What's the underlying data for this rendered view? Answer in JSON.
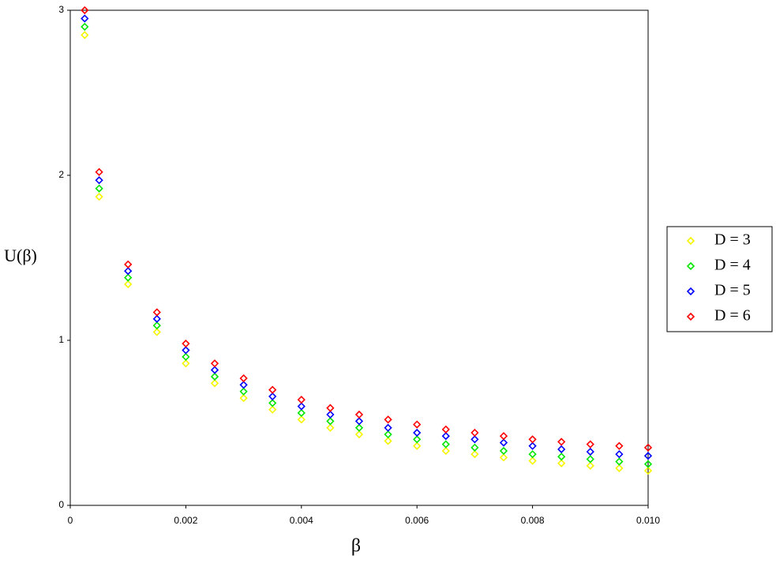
{
  "chart_data": {
    "type": "scatter",
    "x_label": "β",
    "y_label": "U(β)",
    "x": [
      0.00025,
      0.0005,
      0.001,
      0.0015,
      0.002,
      0.0025,
      0.003,
      0.0035,
      0.004,
      0.0045,
      0.005,
      0.0055,
      0.006,
      0.0065,
      0.007,
      0.0075,
      0.008,
      0.0085,
      0.009,
      0.0095,
      0.01
    ],
    "series": [
      {
        "name": "D = 3",
        "color": "#f5f500",
        "values": [
          2.85,
          1.87,
          1.34,
          1.05,
          0.86,
          0.74,
          0.65,
          0.58,
          0.52,
          0.47,
          0.43,
          0.39,
          0.36,
          0.33,
          0.31,
          0.29,
          0.27,
          0.255,
          0.24,
          0.225,
          0.21
        ]
      },
      {
        "name": "D = 4",
        "color": "#00e600",
        "values": [
          2.9,
          1.92,
          1.38,
          1.09,
          0.9,
          0.78,
          0.69,
          0.62,
          0.56,
          0.51,
          0.47,
          0.43,
          0.4,
          0.37,
          0.35,
          0.33,
          0.31,
          0.295,
          0.28,
          0.265,
          0.25
        ]
      },
      {
        "name": "D = 5",
        "color": "#0000ff",
        "values": [
          2.95,
          1.97,
          1.42,
          1.13,
          0.94,
          0.82,
          0.73,
          0.66,
          0.6,
          0.55,
          0.51,
          0.47,
          0.44,
          0.42,
          0.4,
          0.38,
          0.36,
          0.34,
          0.325,
          0.31,
          0.3
        ]
      },
      {
        "name": "D = 6",
        "color": "#ff0000",
        "values": [
          3.0,
          2.02,
          1.46,
          1.17,
          0.98,
          0.86,
          0.77,
          0.7,
          0.64,
          0.59,
          0.55,
          0.52,
          0.49,
          0.46,
          0.44,
          0.42,
          0.4,
          0.385,
          0.37,
          0.36,
          0.35
        ]
      }
    ],
    "xlim": [
      0,
      0.01
    ],
    "xticks": [
      0,
      0.002,
      0.004,
      0.006,
      0.008,
      {
        "value": 0.01,
        "label": "0.010"
      }
    ],
    "ylim": [
      0,
      3
    ],
    "yticks": [
      0,
      1,
      2,
      3
    ],
    "legend": "right"
  }
}
